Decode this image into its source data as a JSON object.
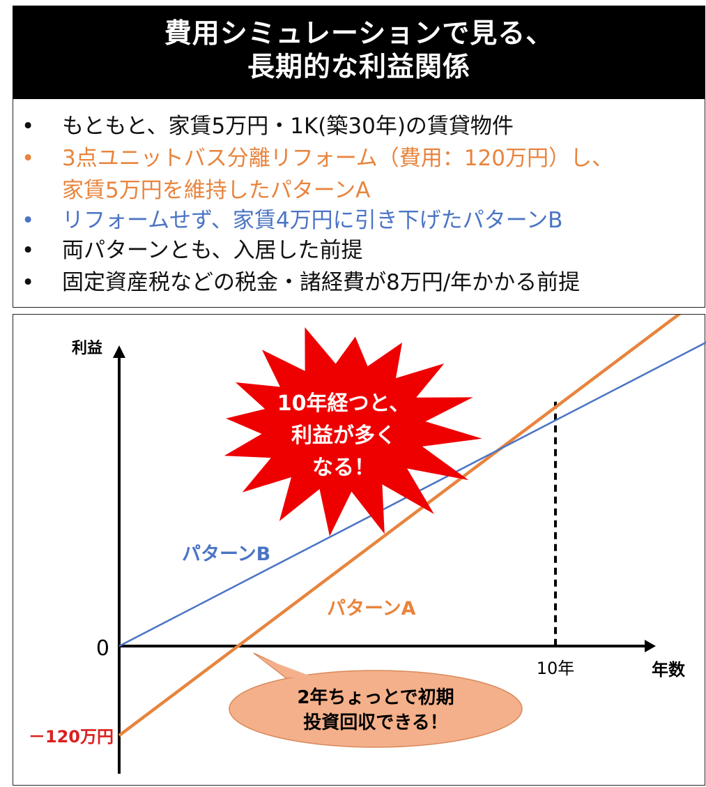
{
  "title": {
    "line1": "費用シミュレーションで見る、",
    "line2": "長期的な利益関係"
  },
  "bullets": [
    {
      "marker": "•",
      "text": "もともと、家賃5万円・1K(築30年)の賃貸物件",
      "color": "#111111"
    },
    {
      "marker": "•",
      "text": "3点ユニットバス分離リフォーム（費用：120万円）し、",
      "color": "#e8843d"
    },
    {
      "marker": "",
      "text": "家賃5万円を維持したパターンA",
      "color": "#e8843d"
    },
    {
      "marker": "•",
      "text": "リフォームせず、家賃4万円に引き下げたパターンB",
      "color": "#4a74c4"
    },
    {
      "marker": "•",
      "text": "両パターンとも、入居した前提",
      "color": "#111111"
    },
    {
      "marker": "•",
      "text": "固定資産税などの税金・諸経費が8万円/年かかる前提",
      "color": "#111111"
    }
  ],
  "chart_data": {
    "type": "line",
    "xlabel": "年数",
    "ylabel": "利益",
    "x_ticks": [
      {
        "value": 10,
        "label": "10年"
      }
    ],
    "y_ticks": [
      {
        "value": 0,
        "label": "0"
      },
      {
        "value": -120,
        "label": "－120万円"
      }
    ],
    "xlim": [
      0,
      13.8
    ],
    "ylim": [
      -200,
      520
    ],
    "series": [
      {
        "name": "パターンA",
        "color": "#e8843d",
        "points": [
          [
            0,
            -120
          ],
          [
            13.8,
            488
          ]
        ]
      },
      {
        "name": "パターンB",
        "color": "#4a74c4",
        "points": [
          [
            0,
            0
          ],
          [
            13.6,
            412
          ]
        ]
      }
    ],
    "reference_line": {
      "x": 10,
      "y": 328,
      "style": "dashed"
    },
    "annotations": {
      "burst": {
        "lines": [
          "10年経つと、",
          "利益が多く",
          "なる！"
        ],
        "fill": "#ee0000",
        "text_color": "#ffffff"
      },
      "bubble": {
        "lines": [
          "2年ちょっとで初期",
          "投資回収できる！"
        ],
        "fill": "#f4b08a"
      }
    }
  }
}
